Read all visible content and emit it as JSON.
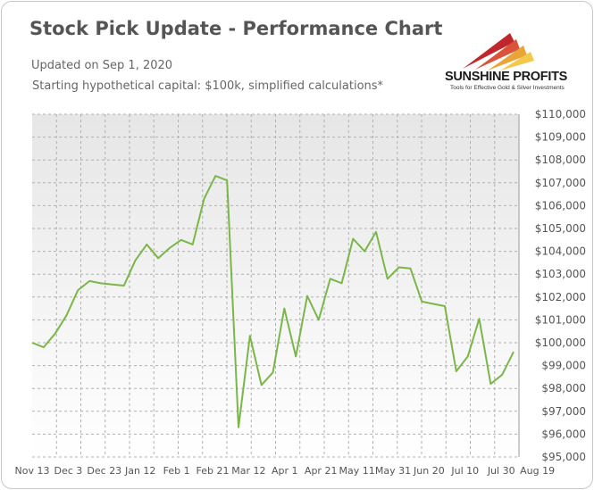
{
  "header": {
    "title": "Stock Pick Update - Performance Chart",
    "updated": "Updated on Sep 1, 2020",
    "capital_note": "Starting hypothetical capital: $100k, simplified calculations*"
  },
  "logo": {
    "name": "SUNSHINE PROFITS",
    "tagline": "Tools for Effective Gold & Silver Investments"
  },
  "colors": {
    "line": "#7ab648",
    "grid": "#b0b0b0",
    "plot_bg_top": "#e6e6e6",
    "plot_bg_bottom": "#ffffff"
  },
  "chart_data": {
    "type": "line",
    "title": "Stock Pick Update - Performance Chart",
    "xlabel": "",
    "ylabel": "",
    "ylim": [
      95000,
      110000
    ],
    "y_ticks": [
      "$95,000",
      "$96,000",
      "$97,000",
      "$98,000",
      "$99,000",
      "$100,000",
      "$101,000",
      "$102,000",
      "$103,000",
      "$104,000",
      "$105,000",
      "$106,000",
      "$107,000",
      "$108,000",
      "$109,000",
      "$110,000"
    ],
    "x_tick_labels": [
      "Nov 13",
      "Dec 3",
      "Dec 23",
      "Jan 12",
      "Feb 1",
      "Feb 21",
      "Mar 12",
      "Apr 1",
      "Apr 21",
      "May 11",
      "May 31",
      "Jun 20",
      "Jul 10",
      "Jul 30",
      "Aug 19"
    ],
    "grid": true,
    "legend": "none",
    "series": [
      {
        "values": [
          100000,
          99800,
          100400,
          101200,
          102300,
          102700,
          102600,
          102550,
          102500,
          103600,
          104300,
          103700,
          104150,
          104500,
          104300,
          106300,
          107300,
          107100,
          96300,
          100300,
          98150,
          98700,
          101500,
          99400,
          102050,
          101000,
          102800,
          102600,
          104550,
          104000,
          104850,
          102800,
          103300,
          103250,
          101800,
          101700,
          101600,
          98750,
          99400,
          101050,
          98200,
          98600,
          99600
        ]
      }
    ]
  }
}
